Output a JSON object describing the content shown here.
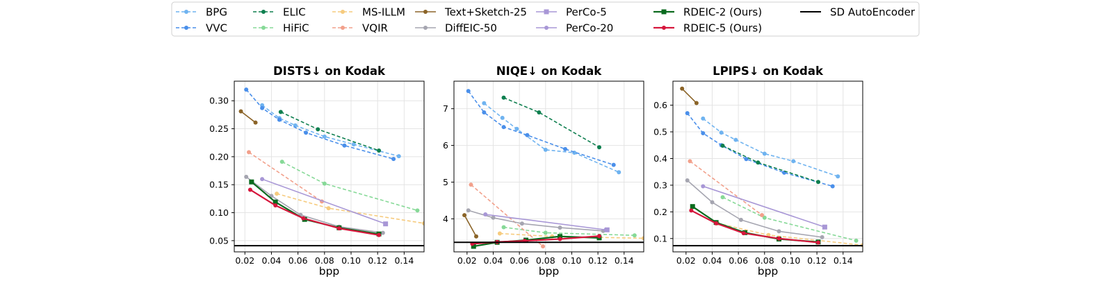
{
  "legend": {
    "items": [
      {
        "name": "BPG",
        "color": "#6fb3f0",
        "dash": true,
        "marker": "circle"
      },
      {
        "name": "VVC",
        "color": "#4a8fea",
        "dash": true,
        "marker": "circle"
      },
      {
        "name": "ELIC",
        "color": "#0e7f4f",
        "dash": true,
        "marker": "circle"
      },
      {
        "name": "HiFiC",
        "color": "#86d997",
        "dash": true,
        "marker": "circle"
      },
      {
        "name": "MS-ILLM",
        "color": "#f6cb7e",
        "dash": true,
        "marker": "circle"
      },
      {
        "name": "VQIR",
        "color": "#f2a08b",
        "dash": true,
        "marker": "circle"
      },
      {
        "name": "Text+Sketch-25",
        "color": "#8b6428",
        "dash": false,
        "marker": "circle"
      },
      {
        "name": "DiffEIC-50",
        "color": "#a5a5b0",
        "dash": false,
        "marker": "circle"
      },
      {
        "name": "PerCo-5",
        "color": "#a897d6",
        "dash": false,
        "marker": "square"
      },
      {
        "name": "PerCo-20",
        "color": "#a897d6",
        "dash": false,
        "marker": "circle"
      },
      {
        "name": "RDEIC-2 (Ours)",
        "color": "#0a6a1e",
        "dash": false,
        "marker": "square"
      },
      {
        "name": "RDEIC-5 (Ours)",
        "color": "#d6163c",
        "dash": false,
        "marker": "circle"
      },
      {
        "name": "SD AutoEncoder",
        "color": "#000000",
        "dash": false,
        "marker": "none"
      }
    ]
  },
  "chart_data": [
    {
      "type": "line",
      "title": "DISTS↓  on Kodak",
      "xlabel": "bpp",
      "ylabel": "",
      "xlim": [
        0.012,
        0.155
      ],
      "ylim": [
        0.03,
        0.335
      ],
      "xticks": [
        "0.02",
        "0.04",
        "0.06",
        "0.08",
        "0.10",
        "0.12",
        "0.14"
      ],
      "yticks": [
        "0.05",
        "0.10",
        "0.15",
        "0.20",
        "0.25",
        "0.30"
      ],
      "series": [
        {
          "name": "BPG",
          "x": [
            0.033,
            0.046,
            0.058,
            0.08,
            0.102,
            0.136
          ],
          "y": [
            0.292,
            0.269,
            0.256,
            0.236,
            0.222,
            0.201
          ]
        },
        {
          "name": "VVC",
          "x": [
            0.021,
            0.033,
            0.046,
            0.066,
            0.095,
            0.132
          ],
          "y": [
            0.32,
            0.287,
            0.266,
            0.243,
            0.22,
            0.196
          ]
        },
        {
          "name": "ELIC",
          "x": [
            0.047,
            0.075,
            0.121
          ],
          "y": [
            0.28,
            0.249,
            0.211
          ]
        },
        {
          "name": "HiFiC",
          "x": [
            0.048,
            0.08,
            0.15
          ],
          "y": [
            0.191,
            0.152,
            0.104
          ]
        },
        {
          "name": "MS-ILLM",
          "x": [
            0.044,
            0.083,
            0.155
          ],
          "y": [
            0.134,
            0.108,
            0.081
          ]
        },
        {
          "name": "VQIR",
          "x": [
            0.023,
            0.078
          ],
          "y": [
            0.208,
            0.12
          ]
        },
        {
          "name": "Text+Sketch-25",
          "x": [
            0.017,
            0.028
          ],
          "y": [
            0.281,
            0.261
          ]
        },
        {
          "name": "DiffEIC-50",
          "x": [
            0.021,
            0.04,
            0.062,
            0.091,
            0.124
          ],
          "y": [
            0.164,
            0.13,
            0.096,
            0.075,
            0.064
          ]
        },
        {
          "name": "PerCo-5",
          "x": [
            0.126
          ],
          "y": [
            0.08
          ]
        },
        {
          "name": "PerCo-20",
          "x": [
            0.033,
            0.126
          ],
          "y": [
            0.16,
            0.08
          ]
        },
        {
          "name": "RDEIC-2 (Ours)",
          "x": [
            0.025,
            0.043,
            0.065,
            0.091,
            0.121
          ],
          "y": [
            0.155,
            0.119,
            0.088,
            0.073,
            0.062
          ]
        },
        {
          "name": "RDEIC-5 (Ours)",
          "x": [
            0.024,
            0.043,
            0.064,
            0.091,
            0.121
          ],
          "y": [
            0.141,
            0.113,
            0.09,
            0.072,
            0.06
          ]
        }
      ],
      "hline": {
        "name": "SD AutoEncoder",
        "y": 0.041
      }
    },
    {
      "type": "line",
      "title": "NIQE↓  on Kodak",
      "xlabel": "bpp",
      "ylabel": "",
      "xlim": [
        0.01,
        0.155
      ],
      "ylim": [
        3.1,
        7.75
      ],
      "xticks": [
        "0.02",
        "0.04",
        "0.06",
        "0.08",
        "0.10",
        "0.12",
        "0.14"
      ],
      "yticks": [
        "4",
        "5",
        "6",
        "7"
      ],
      "series": [
        {
          "name": "BPG",
          "x": [
            0.033,
            0.047,
            0.058,
            0.08,
            0.102,
            0.136
          ],
          "y": [
            7.15,
            6.75,
            6.45,
            5.88,
            5.8,
            5.27
          ]
        },
        {
          "name": "VVC",
          "x": [
            0.021,
            0.033,
            0.048,
            0.066,
            0.095,
            0.132
          ],
          "y": [
            7.48,
            6.9,
            6.5,
            6.28,
            5.9,
            5.47
          ]
        },
        {
          "name": "ELIC",
          "x": [
            0.048,
            0.075,
            0.121
          ],
          "y": [
            7.3,
            6.9,
            5.95
          ]
        },
        {
          "name": "HiFiC",
          "x": [
            0.048,
            0.08,
            0.148
          ],
          "y": [
            3.77,
            3.62,
            3.55
          ]
        },
        {
          "name": "MS-ILLM",
          "x": [
            0.045,
            0.085,
            0.155
          ],
          "y": [
            3.6,
            3.52,
            3.47
          ]
        },
        {
          "name": "VQIR",
          "x": [
            0.023,
            0.078
          ],
          "y": [
            4.93,
            3.25
          ]
        },
        {
          "name": "Text+Sketch-25",
          "x": [
            0.018,
            0.027
          ],
          "y": [
            4.1,
            3.52
          ]
        },
        {
          "name": "DiffEIC-50",
          "x": [
            0.021,
            0.04,
            0.062,
            0.091,
            0.124
          ],
          "y": [
            4.23,
            4.03,
            3.87,
            3.76,
            3.67
          ]
        },
        {
          "name": "PerCo-5",
          "x": [
            0.127
          ],
          "y": [
            3.7
          ]
        },
        {
          "name": "PerCo-20",
          "x": [
            0.034,
            0.126
          ],
          "y": [
            4.12,
            3.7
          ]
        },
        {
          "name": "RDEIC-2 (Ours)",
          "x": [
            0.025,
            0.043,
            0.065,
            0.091,
            0.121
          ],
          "y": [
            3.25,
            3.36,
            3.42,
            3.52,
            3.48
          ]
        },
        {
          "name": "RDEIC-5 (Ours)",
          "x": [
            0.024,
            0.043,
            0.064,
            0.091,
            0.121
          ],
          "y": [
            3.32,
            3.37,
            3.4,
            3.45,
            3.53
          ]
        }
      ],
      "hline": {
        "name": "SD AutoEncoder",
        "y": 3.36
      }
    },
    {
      "type": "line",
      "title": "LPIPS↓  on Kodak",
      "xlabel": "bpp",
      "ylabel": "",
      "xlim": [
        0.01,
        0.155
      ],
      "ylim": [
        0.05,
        0.69
      ],
      "xticks": [
        "0.02",
        "0.04",
        "0.06",
        "0.08",
        "0.10",
        "0.12",
        "0.14"
      ],
      "yticks": [
        "0.1",
        "0.2",
        "0.3",
        "0.4",
        "0.5",
        "0.6"
      ],
      "series": [
        {
          "name": "BPG",
          "x": [
            0.033,
            0.047,
            0.058,
            0.08,
            0.102,
            0.136
          ],
          "y": [
            0.55,
            0.497,
            0.47,
            0.418,
            0.39,
            0.333
          ]
        },
        {
          "name": "VVC",
          "x": [
            0.021,
            0.033,
            0.047,
            0.066,
            0.095,
            0.132
          ],
          "y": [
            0.57,
            0.495,
            0.45,
            0.398,
            0.347,
            0.296
          ]
        },
        {
          "name": "ELIC",
          "x": [
            0.048,
            0.075,
            0.121
          ],
          "y": [
            0.448,
            0.385,
            0.312
          ]
        },
        {
          "name": "HiFiC",
          "x": [
            0.048,
            0.08,
            0.15
          ],
          "y": [
            0.255,
            0.178,
            0.092
          ]
        },
        {
          "name": "MS-ILLM",
          "x": [
            0.044,
            0.083,
            0.155
          ],
          "y": [
            0.157,
            0.113,
            0.075
          ]
        },
        {
          "name": "VQIR",
          "x": [
            0.023,
            0.078
          ],
          "y": [
            0.39,
            0.188
          ]
        },
        {
          "name": "Text+Sketch-25",
          "x": [
            0.017,
            0.028
          ],
          "y": [
            0.662,
            0.608
          ]
        },
        {
          "name": "DiffEIC-50",
          "x": [
            0.021,
            0.04,
            0.062,
            0.091,
            0.124
          ],
          "y": [
            0.318,
            0.236,
            0.17,
            0.127,
            0.105
          ]
        },
        {
          "name": "PerCo-5",
          "x": [
            0.126
          ],
          "y": [
            0.143
          ]
        },
        {
          "name": "PerCo-20",
          "x": [
            0.033,
            0.126
          ],
          "y": [
            0.296,
            0.143
          ]
        },
        {
          "name": "RDEIC-2 (Ours)",
          "x": [
            0.025,
            0.043,
            0.065,
            0.091,
            0.121
          ],
          "y": [
            0.22,
            0.16,
            0.122,
            0.098,
            0.087
          ]
        },
        {
          "name": "RDEIC-5 (Ours)",
          "x": [
            0.024,
            0.043,
            0.064,
            0.091,
            0.121
          ],
          "y": [
            0.205,
            0.157,
            0.12,
            0.1,
            0.085
          ]
        }
      ],
      "hline": {
        "name": "SD AutoEncoder",
        "y": 0.073
      }
    }
  ]
}
